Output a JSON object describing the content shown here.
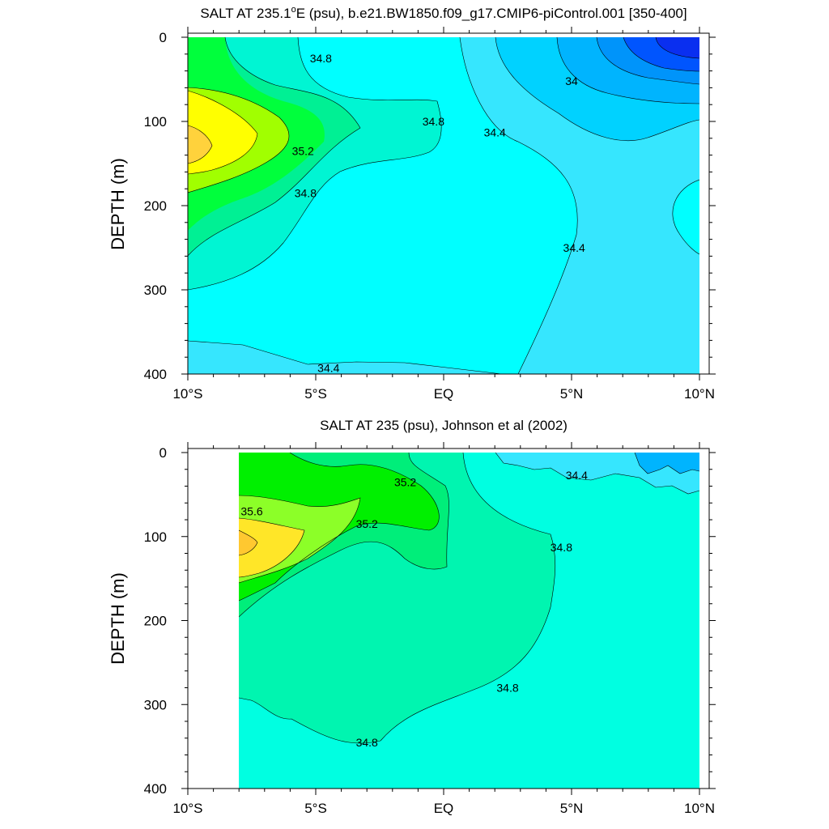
{
  "chart_data": [
    {
      "type": "contour",
      "title_pre": "SALT AT 235.1",
      "title_sup": "o",
      "title_post": "E (psu), b.e21.BW1850.f09_g17.CMIP6-piControl.001 [350-400]",
      "ylabel": "DEPTH (m)",
      "y_ticks": [
        0,
        100,
        200,
        300,
        400
      ],
      "x_ticks": [
        "10°S",
        "5°S",
        "EQ",
        "5°N",
        "10°N"
      ],
      "xlim": [
        -10,
        10
      ],
      "ylim": [
        0,
        400
      ],
      "y_reversed": true,
      "contour_interval": 0.2,
      "contour_labels": [
        {
          "text": "34.8",
          "lat": -4.8,
          "depth": 25
        },
        {
          "text": "34.8",
          "lat": -0.4,
          "depth": 100
        },
        {
          "text": "35.2",
          "lat": -5.5,
          "depth": 135
        },
        {
          "text": "34.8",
          "lat": -5.4,
          "depth": 185
        },
        {
          "text": "34.4",
          "lat": 2.0,
          "depth": 113
        },
        {
          "text": "34",
          "lat": 5.0,
          "depth": 52
        },
        {
          "text": "34.4",
          "lat": 5.1,
          "depth": 250
        },
        {
          "text": "34.4",
          "lat": -4.5,
          "depth": 393
        }
      ],
      "colors": {
        "s33.4": "#0a2ff0",
        "s33.6": "#0055fe",
        "s33.8": "#0094fa",
        "s34.0": "#00b4fe",
        "s34.2": "#00d2ff",
        "s34.4": "#36e6fe",
        "s34.6": "#00ffff",
        "s34.8": "#00f5d3",
        "s35.0": "#00f094",
        "s35.2": "#00ff3c",
        "s35.4": "#a1ff00",
        "s35.6": "#ffff00",
        "s35.8": "#ffd23c"
      }
    },
    {
      "type": "contour",
      "title_pre": "SALT AT 235 (psu), Johnson et al (2002)",
      "title_sup": "",
      "title_post": "",
      "ylabel": "DEPTH (m)",
      "y_ticks": [
        0,
        100,
        200,
        300,
        400
      ],
      "x_ticks": [
        "10°S",
        "5°S",
        "EQ",
        "5°N",
        "10°N"
      ],
      "xlim": [
        -10,
        10
      ],
      "ylim": [
        0,
        400
      ],
      "y_reversed": true,
      "data_lat_range": [
        -8,
        10
      ],
      "contour_interval": 0.2,
      "contour_labels": [
        {
          "text": "35.2",
          "lat": -1.5,
          "depth": 35
        },
        {
          "text": "35.6",
          "lat": -7.5,
          "depth": 70
        },
        {
          "text": "35.2",
          "lat": -3.0,
          "depth": 85
        },
        {
          "text": "34.4",
          "lat": 5.2,
          "depth": 27
        },
        {
          "text": "34.8",
          "lat": 4.6,
          "depth": 113
        },
        {
          "text": "34.8",
          "lat": 2.5,
          "depth": 280
        },
        {
          "text": "34.8",
          "lat": -3.0,
          "depth": 345
        }
      ],
      "colors": {
        "s34.2": "#00b4fe",
        "s34.4": "#36e6fe",
        "s34.6": "#00ffe1",
        "s34.8": "#00f5b0",
        "s35.0": "#00ee7a",
        "s35.2": "#00f000",
        "s35.4": "#8cff28",
        "s35.6": "#ffe628",
        "s35.8": "#ffc830"
      }
    }
  ]
}
